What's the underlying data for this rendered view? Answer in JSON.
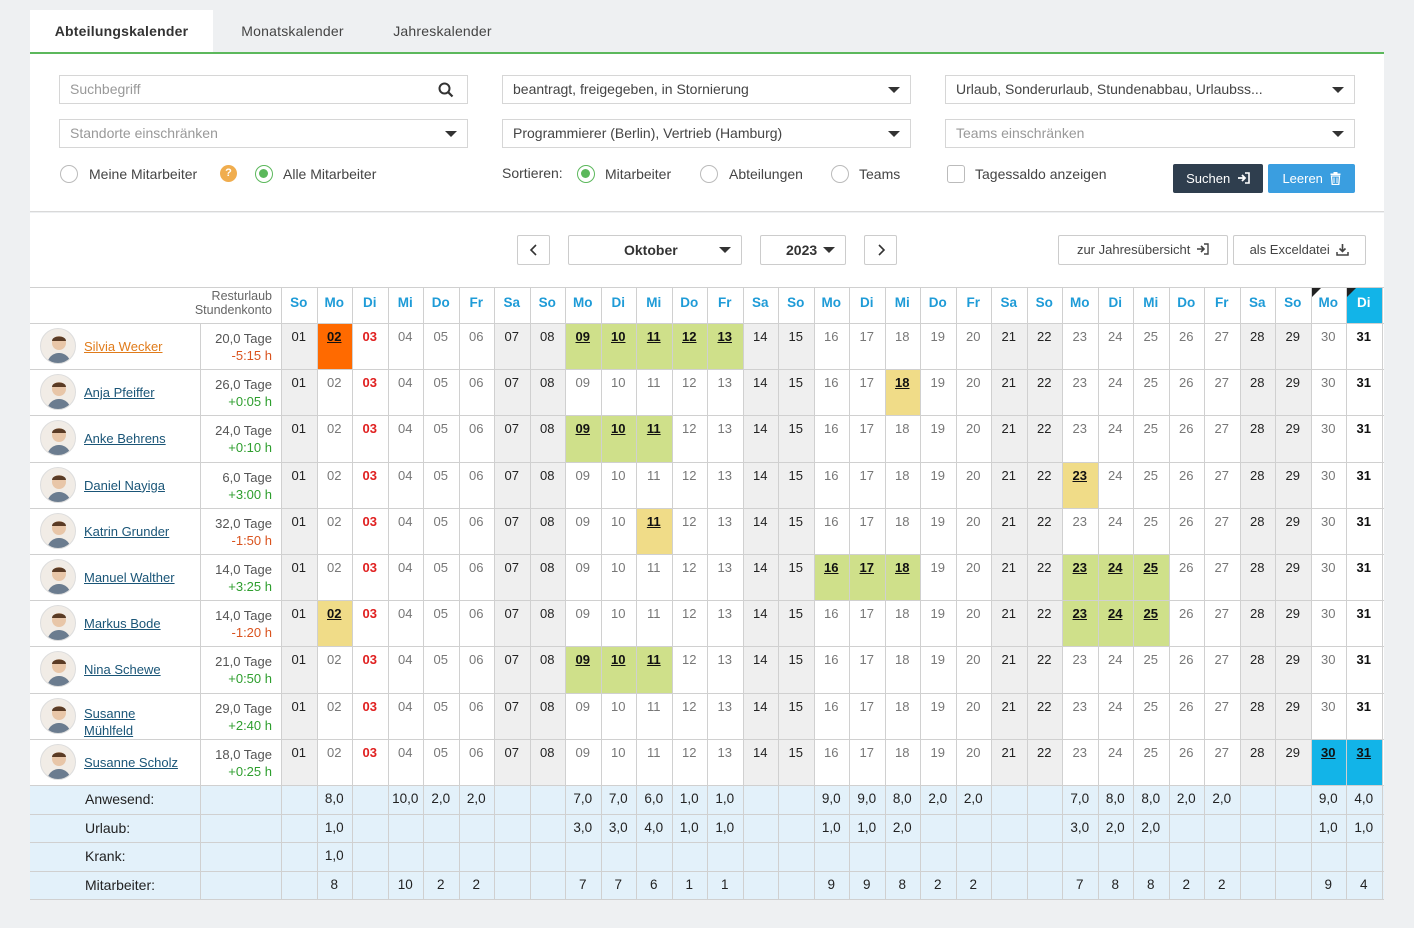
{
  "tabs": [
    {
      "label": "Abteilungskalender",
      "active": true
    },
    {
      "label": "Monatskalender",
      "active": false
    },
    {
      "label": "Jahreskalender",
      "active": false
    }
  ],
  "filters": {
    "search_placeholder": "Suchbegriff",
    "status_value": "beantragt, freigegeben, in Stornierung",
    "types_value": "Urlaub, Sonderurlaub, Stundenabbau, Urlaubss...",
    "locations_placeholder": "Standorte einschränken",
    "departments_value": "Programmierer (Berlin), Vertrieb (Hamburg)",
    "teams_placeholder": "Teams einschränken",
    "my_employees_label": "Meine Mitarbeiter",
    "help_badge": "?",
    "all_employees_label": "Alle Mitarbeiter",
    "sort_label": "Sortieren:",
    "sort_employees_label": "Mitarbeiter",
    "sort_departments_label": "Abteilungen",
    "sort_teams_label": "Teams",
    "daily_balance_label": "Tagessaldo anzeigen",
    "search_button": "Suchen",
    "clear_button": "Leeren"
  },
  "navigation": {
    "month": "Oktober",
    "year": "2023",
    "year_overview_button": "zur Jahresübersicht",
    "excel_button": "als Exceldatei"
  },
  "colors": {
    "green_tab": "#5cb85c",
    "weekday_header": "#1e9bd7",
    "absence_approved": "#cfe08a",
    "absence_requested": "#f0dc88",
    "absence_selected": "#ff6a00",
    "today": "#12b4e8",
    "weekend_bg": "#efefef",
    "summary_bg": "#e3f1fa",
    "plus_text": "#2e9e2e",
    "minus_text": "#d9531e",
    "holiday_text": "#e02020",
    "search_button_bg": "#2f3e4e",
    "clear_button_bg": "#3a9ee0"
  },
  "header": {
    "resturlaub_label": "Resturlaub",
    "stundenkonto_label": "Stundenkonto",
    "weekdays": [
      "So",
      "Mo",
      "Di",
      "Mi",
      "Do",
      "Fr",
      "Sa",
      "So",
      "Mo",
      "Di",
      "Mi",
      "Do",
      "Fr",
      "Sa",
      "So",
      "Mo",
      "Di",
      "Mi",
      "Do",
      "Fr",
      "Sa",
      "So",
      "Mo",
      "Di",
      "Mi",
      "Do",
      "Fr",
      "Sa",
      "So",
      "Mo",
      "Di"
    ],
    "holiday_day": "03",
    "today_day": "31"
  },
  "days": [
    "01",
    "02",
    "03",
    "04",
    "05",
    "06",
    "07",
    "08",
    "09",
    "10",
    "11",
    "12",
    "13",
    "14",
    "15",
    "16",
    "17",
    "18",
    "19",
    "20",
    "21",
    "22",
    "23",
    "24",
    "25",
    "26",
    "27",
    "28",
    "29",
    "30",
    "31"
  ],
  "employees": [
    {
      "name": "Silvia Wecker",
      "tage": "20,0 Tage",
      "saldo": "-5:15 h",
      "selected": true,
      "cells": {
        "02": "orange",
        "09": "green",
        "10": "green",
        "11": "green",
        "12": "green",
        "13": "green"
      }
    },
    {
      "name": "Anja Pfeiffer",
      "tage": "26,0 Tage",
      "saldo": "+0:05 h",
      "cells": {
        "18": "yellow"
      }
    },
    {
      "name": "Anke Behrens",
      "tage": "24,0 Tage",
      "saldo": "+0:10 h",
      "cells": {
        "09": "green",
        "10": "green",
        "11": "green"
      }
    },
    {
      "name": "Daniel Nayiga",
      "tage": "6,0 Tage",
      "saldo": "+3:00 h",
      "cells": {
        "23": "yellow"
      }
    },
    {
      "name": "Katrin Grunder",
      "tage": "32,0 Tage",
      "saldo": "-1:50 h",
      "cells": {
        "11": "yellow"
      }
    },
    {
      "name": "Manuel Walther",
      "tage": "14,0 Tage",
      "saldo": "+3:25 h",
      "cells": {
        "16": "green",
        "17": "green",
        "18": "green",
        "23": "green",
        "24": "green",
        "25": "green"
      }
    },
    {
      "name": "Markus Bode",
      "tage": "14,0 Tage",
      "saldo": "-1:20 h",
      "cells": {
        "02": "yellow",
        "23": "green",
        "24": "green",
        "25": "green"
      }
    },
    {
      "name": "Nina Schewe",
      "tage": "21,0 Tage",
      "saldo": "+0:50 h",
      "cells": {
        "09": "green",
        "10": "green",
        "11": "green"
      }
    },
    {
      "name": "Susanne Mühlfeld",
      "name_line1": "Susanne",
      "name_line2": "Mühlfeld",
      "tage": "29,0 Tage",
      "saldo": "+2:40 h",
      "cells": {}
    },
    {
      "name": "Susanne Scholz",
      "tage": "18,0 Tage",
      "saldo": "+0:25 h",
      "cells": {
        "30": "blue",
        "31": "blue"
      }
    }
  ],
  "summary": [
    {
      "label": "Anwesend:",
      "values": {
        "02": "8,0",
        "04": "10,0",
        "05": "2,0",
        "06": "2,0",
        "09": "7,0",
        "10": "7,0",
        "11": "6,0",
        "12": "1,0",
        "13": "1,0",
        "16": "9,0",
        "17": "9,0",
        "18": "8,0",
        "19": "2,0",
        "20": "2,0",
        "23": "7,0",
        "24": "8,0",
        "25": "8,0",
        "26": "2,0",
        "27": "2,0",
        "30": "9,0",
        "31": "4,0"
      }
    },
    {
      "label": "Urlaub:",
      "values": {
        "02": "1,0",
        "09": "3,0",
        "10": "3,0",
        "11": "4,0",
        "12": "1,0",
        "13": "1,0",
        "16": "1,0",
        "17": "1,0",
        "18": "2,0",
        "23": "3,0",
        "24": "2,0",
        "25": "2,0",
        "30": "1,0",
        "31": "1,0"
      }
    },
    {
      "label": "Krank:",
      "values": {
        "02": "1,0"
      }
    },
    {
      "label": "Mitarbeiter:",
      "values": {
        "02": "8",
        "04": "10",
        "05": "2",
        "06": "2",
        "09": "7",
        "10": "7",
        "11": "6",
        "12": "1",
        "13": "1",
        "16": "9",
        "17": "9",
        "18": "8",
        "19": "2",
        "20": "2",
        "23": "7",
        "24": "8",
        "25": "8",
        "26": "2",
        "27": "2",
        "30": "9",
        "31": "4"
      }
    }
  ]
}
